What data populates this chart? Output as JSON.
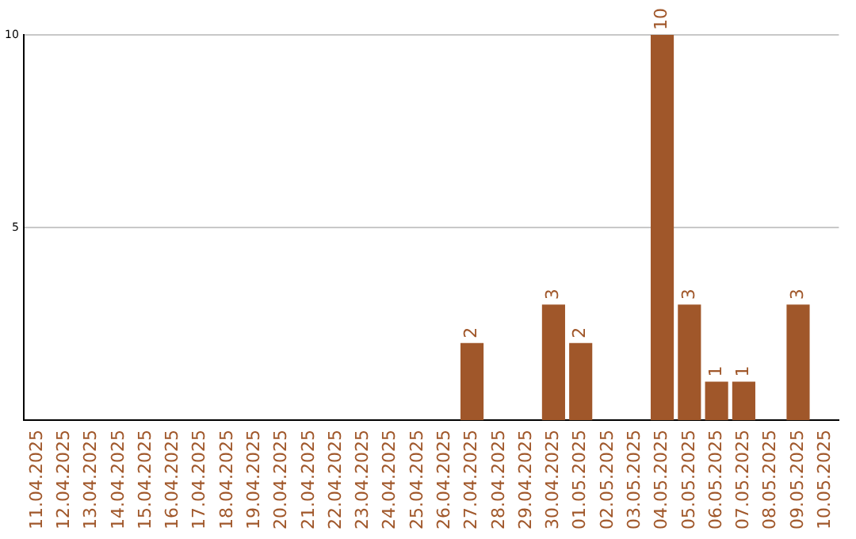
{
  "chart_data": {
    "type": "bar",
    "categories": [
      "11.04.2025",
      "12.04.2025",
      "13.04.2025",
      "14.04.2025",
      "15.04.2025",
      "16.04.2025",
      "17.04.2025",
      "18.04.2025",
      "19.04.2025",
      "20.04.2025",
      "21.04.2025",
      "22.04.2025",
      "23.04.2025",
      "24.04.2025",
      "25.04.2025",
      "26.04.2025",
      "27.04.2025",
      "28.04.2025",
      "29.04.2025",
      "30.04.2025",
      "01.05.2025",
      "02.05.2025",
      "03.05.2025",
      "04.05.2025",
      "05.05.2025",
      "06.05.2025",
      "07.05.2025",
      "08.05.2025",
      "09.05.2025",
      "10.05.2025"
    ],
    "values": [
      0,
      0,
      0,
      0,
      0,
      0,
      0,
      0,
      0,
      0,
      0,
      0,
      0,
      0,
      0,
      0,
      2,
      0,
      0,
      3,
      2,
      0,
      0,
      10,
      3,
      1,
      1,
      0,
      3,
      0
    ],
    "value_labels": [
      null,
      null,
      null,
      null,
      null,
      null,
      null,
      null,
      null,
      null,
      null,
      null,
      null,
      null,
      null,
      null,
      "2",
      null,
      null,
      "3",
      "2",
      null,
      null,
      "10",
      "3",
      "1",
      "1",
      null,
      "3",
      null
    ],
    "color": "#a0572a",
    "ylim": [
      0,
      10
    ],
    "yticks": [
      5,
      10
    ],
    "grid": "y",
    "legend": false
  }
}
